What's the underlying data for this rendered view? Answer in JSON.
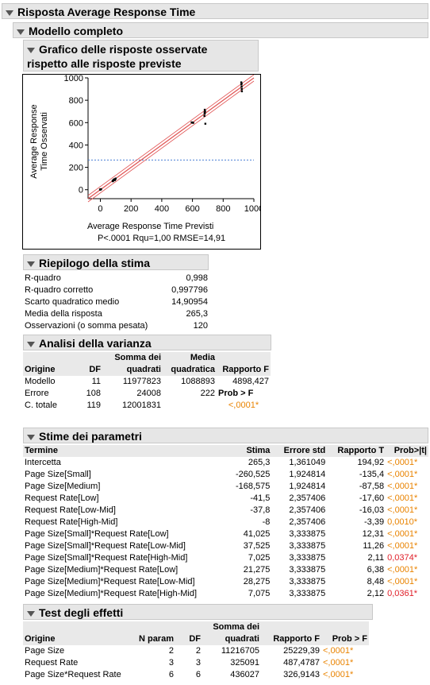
{
  "report": {
    "title": "Risposta Average Response Time"
  },
  "model": {
    "title": "Modello completo"
  },
  "plot": {
    "title_line1": "Grafico delle risposte osservate",
    "title_line2": "rispetto alle risposte previste",
    "xlabel": "Average Response Time Previsti",
    "ylabel_line1": "Average Response",
    "ylabel_line2": "Time Osservati",
    "footer": "P<.0001 Rqu=1,00 RMSE=14,91",
    "colors": {
      "fit_line": "#e05050",
      "mean_line": "#4a7fd4",
      "points": "#000000"
    },
    "chart_data": {
      "type": "scatter",
      "x_ticks": [
        "0",
        "200",
        "400",
        "600",
        "800",
        "1000"
      ],
      "y_ticks": [
        "0",
        "200",
        "400",
        "600",
        "800",
        "1000"
      ],
      "xlim": [
        -80,
        1000
      ],
      "ylim": [
        -80,
        1000
      ],
      "mean_y": 265.3,
      "points": [
        [
          0,
          0
        ],
        [
          5,
          5
        ],
        [
          -2,
          3
        ],
        [
          80,
          80
        ],
        [
          82,
          76
        ],
        [
          85,
          84
        ],
        [
          90,
          90
        ],
        [
          95,
          86
        ],
        [
          100,
          100
        ],
        [
          97,
          95
        ],
        [
          88,
          92
        ],
        [
          600,
          600
        ],
        [
          605,
          598
        ],
        [
          595,
          602
        ],
        [
          680,
          680
        ],
        [
          682,
          700
        ],
        [
          678,
          660
        ],
        [
          684,
          590
        ],
        [
          680,
          715
        ],
        [
          679,
          690
        ],
        [
          920,
          920
        ],
        [
          918,
          960
        ],
        [
          922,
          880
        ],
        [
          921,
          900
        ],
        [
          919,
          940
        ],
        [
          920,
          950
        ]
      ]
    }
  },
  "summary": {
    "title": "Riepilogo della stima",
    "rows": [
      {
        "label": "R-quadro",
        "value": "0,998"
      },
      {
        "label": "R-quadro corretto",
        "value": "0,997796"
      },
      {
        "label": "Scarto quadratico medio",
        "value": "14,90954"
      },
      {
        "label": "Media della risposta",
        "value": "265,3"
      },
      {
        "label": "Osservazioni (o somma pesata)",
        "value": "120"
      }
    ]
  },
  "anova": {
    "title": "Analisi della varianza",
    "headers": {
      "source": "Origine",
      "df": "DF",
      "ss_top": "Somma dei",
      "ss_bottom": "quadrati",
      "ms_top": "Media",
      "ms_bottom": "quadratica",
      "f": "Rapporto F"
    },
    "rows": [
      {
        "source": "Modello",
        "df": "11",
        "ss": "11977823",
        "ms": "1088893",
        "f": "4898,427"
      },
      {
        "source": "Errore",
        "df": "108",
        "ss": "24008",
        "ms": "222",
        "f": "Prob > F"
      },
      {
        "source": "C. totale",
        "df": "119",
        "ss": "12001831",
        "ms": "",
        "f": "<,0001*"
      }
    ]
  },
  "params": {
    "title": "Stime dei parametri",
    "headers": {
      "term": "Termine",
      "est": "Stima",
      "se": "Errore std",
      "t": "Rapporto T",
      "p": "Prob>|t|"
    },
    "rows": [
      {
        "term": "Intercetta",
        "est": "265,3",
        "se": "1,361049",
        "t": "194,92",
        "p": "<,0001*",
        "pc": "orange"
      },
      {
        "term": "Page Size[Small]",
        "est": "-260,525",
        "se": "1,924814",
        "t": "-135,4",
        "p": "<,0001*",
        "pc": "orange"
      },
      {
        "term": "Page Size[Medium]",
        "est": "-168,575",
        "se": "1,924814",
        "t": "-87,58",
        "p": "<,0001*",
        "pc": "orange"
      },
      {
        "term": "Request Rate[Low]",
        "est": "-41,5",
        "se": "2,357406",
        "t": "-17,60",
        "p": "<,0001*",
        "pc": "orange"
      },
      {
        "term": "Request Rate[Low-Mid]",
        "est": "-37,8",
        "se": "2,357406",
        "t": "-16,03",
        "p": "<,0001*",
        "pc": "orange"
      },
      {
        "term": "Request Rate[High-Mid]",
        "est": "-8",
        "se": "2,357406",
        "t": "-3,39",
        "p": "0,0010*",
        "pc": "orange"
      },
      {
        "term": "Page Size[Small]*Request Rate[Low]",
        "est": "41,025",
        "se": "3,333875",
        "t": "12,31",
        "p": "<,0001*",
        "pc": "orange"
      },
      {
        "term": "Page Size[Small]*Request Rate[Low-Mid]",
        "est": "37,525",
        "se": "3,333875",
        "t": "11,26",
        "p": "<,0001*",
        "pc": "orange"
      },
      {
        "term": "Page Size[Small]*Request Rate[High-Mid]",
        "est": "7,025",
        "se": "3,333875",
        "t": "2,11",
        "p": "0,0374*",
        "pc": "red"
      },
      {
        "term": "Page Size[Medium]*Request Rate[Low]",
        "est": "21,275",
        "se": "3,333875",
        "t": "6,38",
        "p": "<,0001*",
        "pc": "orange"
      },
      {
        "term": "Page Size[Medium]*Request Rate[Low-Mid]",
        "est": "28,275",
        "se": "3,333875",
        "t": "8,48",
        "p": "<,0001*",
        "pc": "orange"
      },
      {
        "term": "Page Size[Medium]*Request Rate[High-Mid]",
        "est": "7,075",
        "se": "3,333875",
        "t": "2,12",
        "p": "0,0361*",
        "pc": "red"
      }
    ]
  },
  "effects": {
    "title": "Test degli effetti",
    "headers": {
      "source": "Origine",
      "nparam": "N param",
      "df": "DF",
      "ss_top": "Somma dei",
      "ss_bottom": "quadrati",
      "f": "Rapporto F",
      "p": "Prob > F"
    },
    "rows": [
      {
        "source": "Page Size",
        "nparam": "2",
        "df": "2",
        "ss": "11216705",
        "f": "25229,39",
        "p": "<,0001*"
      },
      {
        "source": "Request Rate",
        "nparam": "3",
        "df": "3",
        "ss": "325091",
        "f": "487,4787",
        "p": "<,0001*"
      },
      {
        "source": "Page Size*Request Rate",
        "nparam": "6",
        "df": "6",
        "ss": "436027",
        "f": "326,9143",
        "p": "<,0001*"
      }
    ]
  }
}
